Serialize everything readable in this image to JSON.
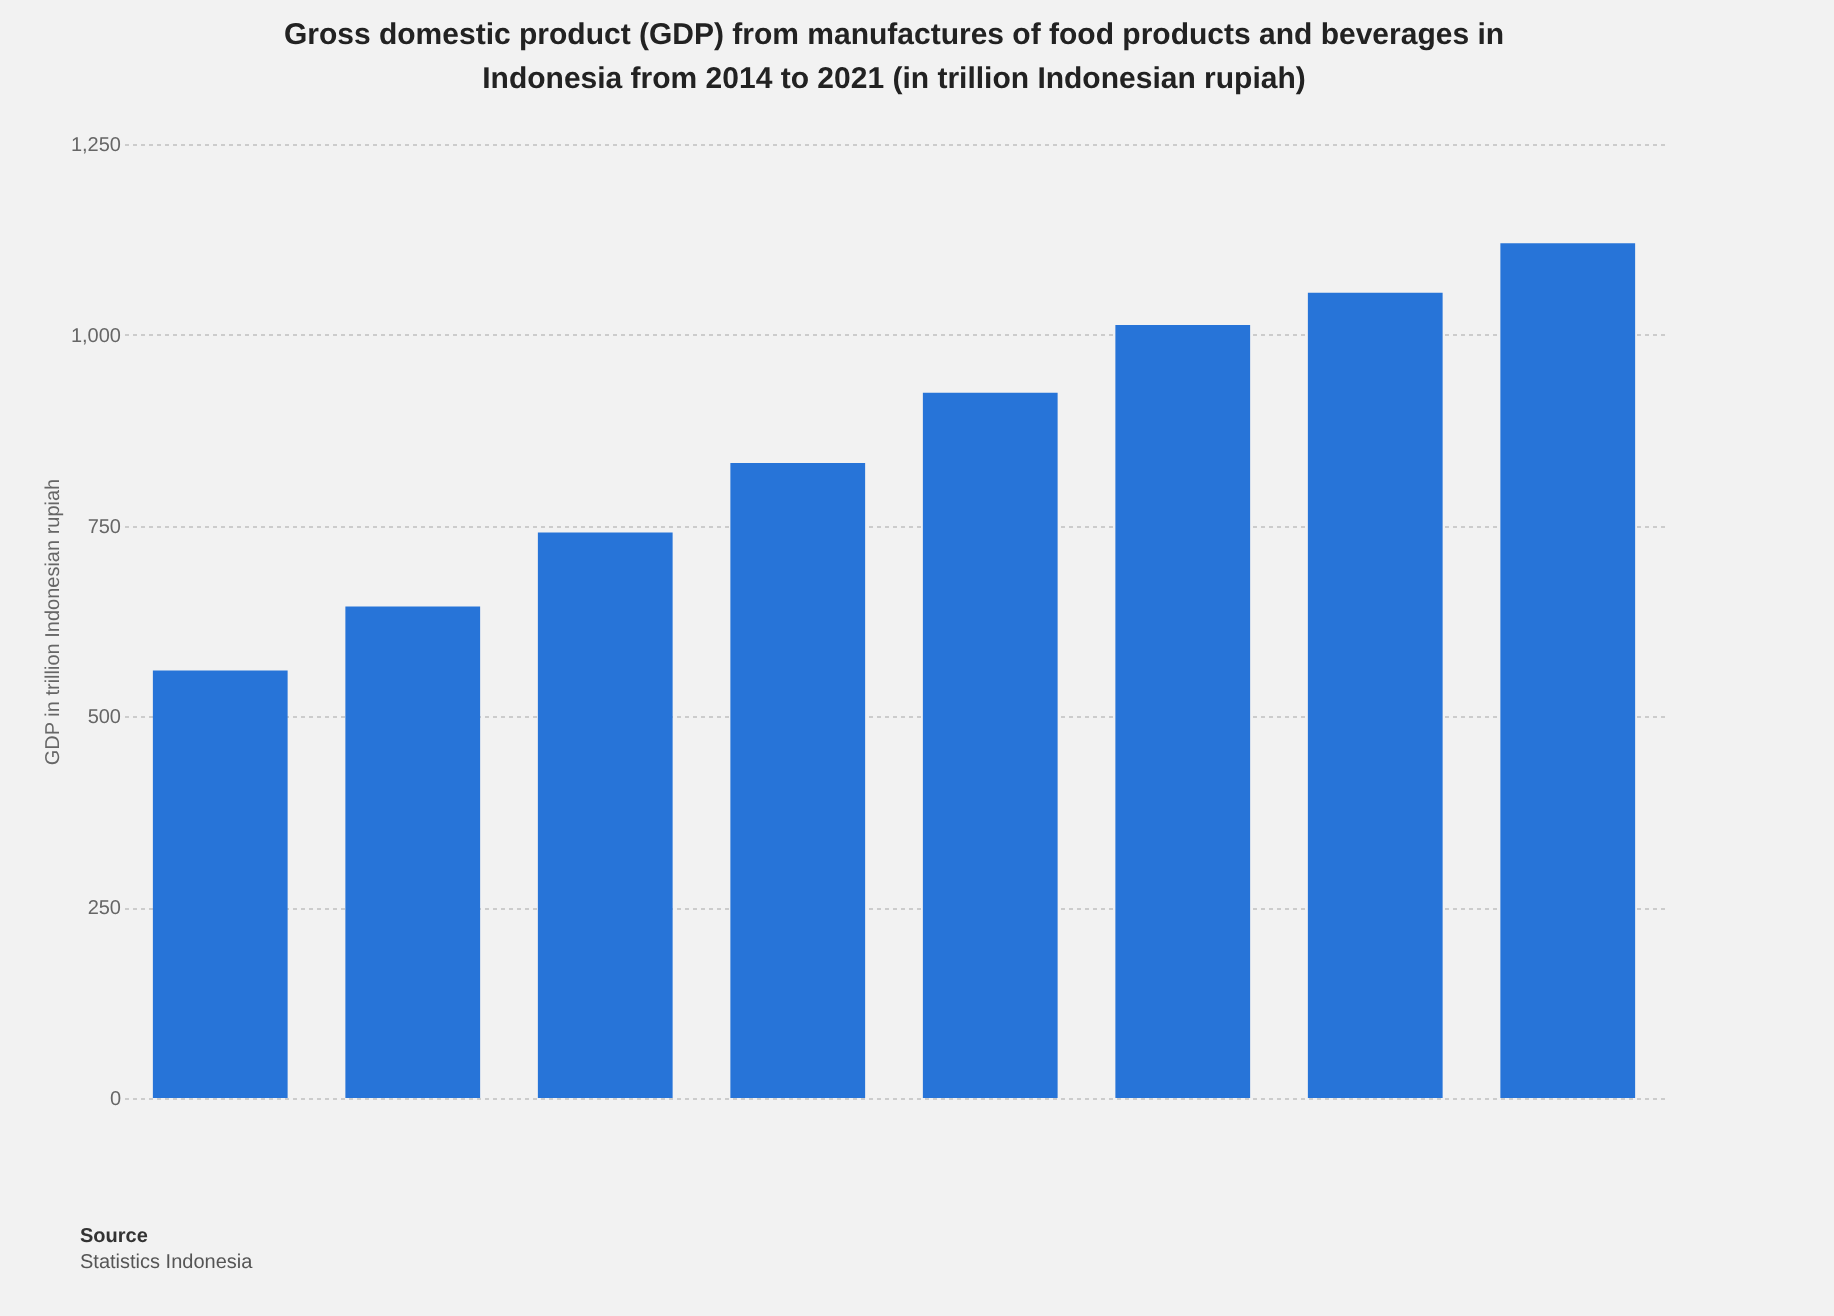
{
  "chart_data": {
    "type": "bar",
    "title": "Gross domestic product (GDP) from manufactures of food products and beverages in Indonesia from 2014 to 2021 (in trillion Indonesian rupiah)",
    "ylabel": "GDP in trillion Indonesian rupiah",
    "categories": [
      null,
      null,
      null,
      null,
      null,
      null,
      null,
      null
    ],
    "values": [
      560,
      644,
      741,
      832,
      924,
      1013,
      1055,
      1120
    ],
    "color": "#2774d8",
    "ylim": [
      0,
      1250
    ],
    "yticks": [
      0,
      250,
      500,
      {
        "value": 750,
        "label": "750"
      },
      {
        "value": 1000,
        "label": "1,000"
      },
      {
        "value": 1250,
        "label": "1,250"
      }
    ],
    "grid": "y",
    "tick_labels": "y",
    "annotations": [
      "Source",
      "Statistics Indonesia"
    ]
  }
}
